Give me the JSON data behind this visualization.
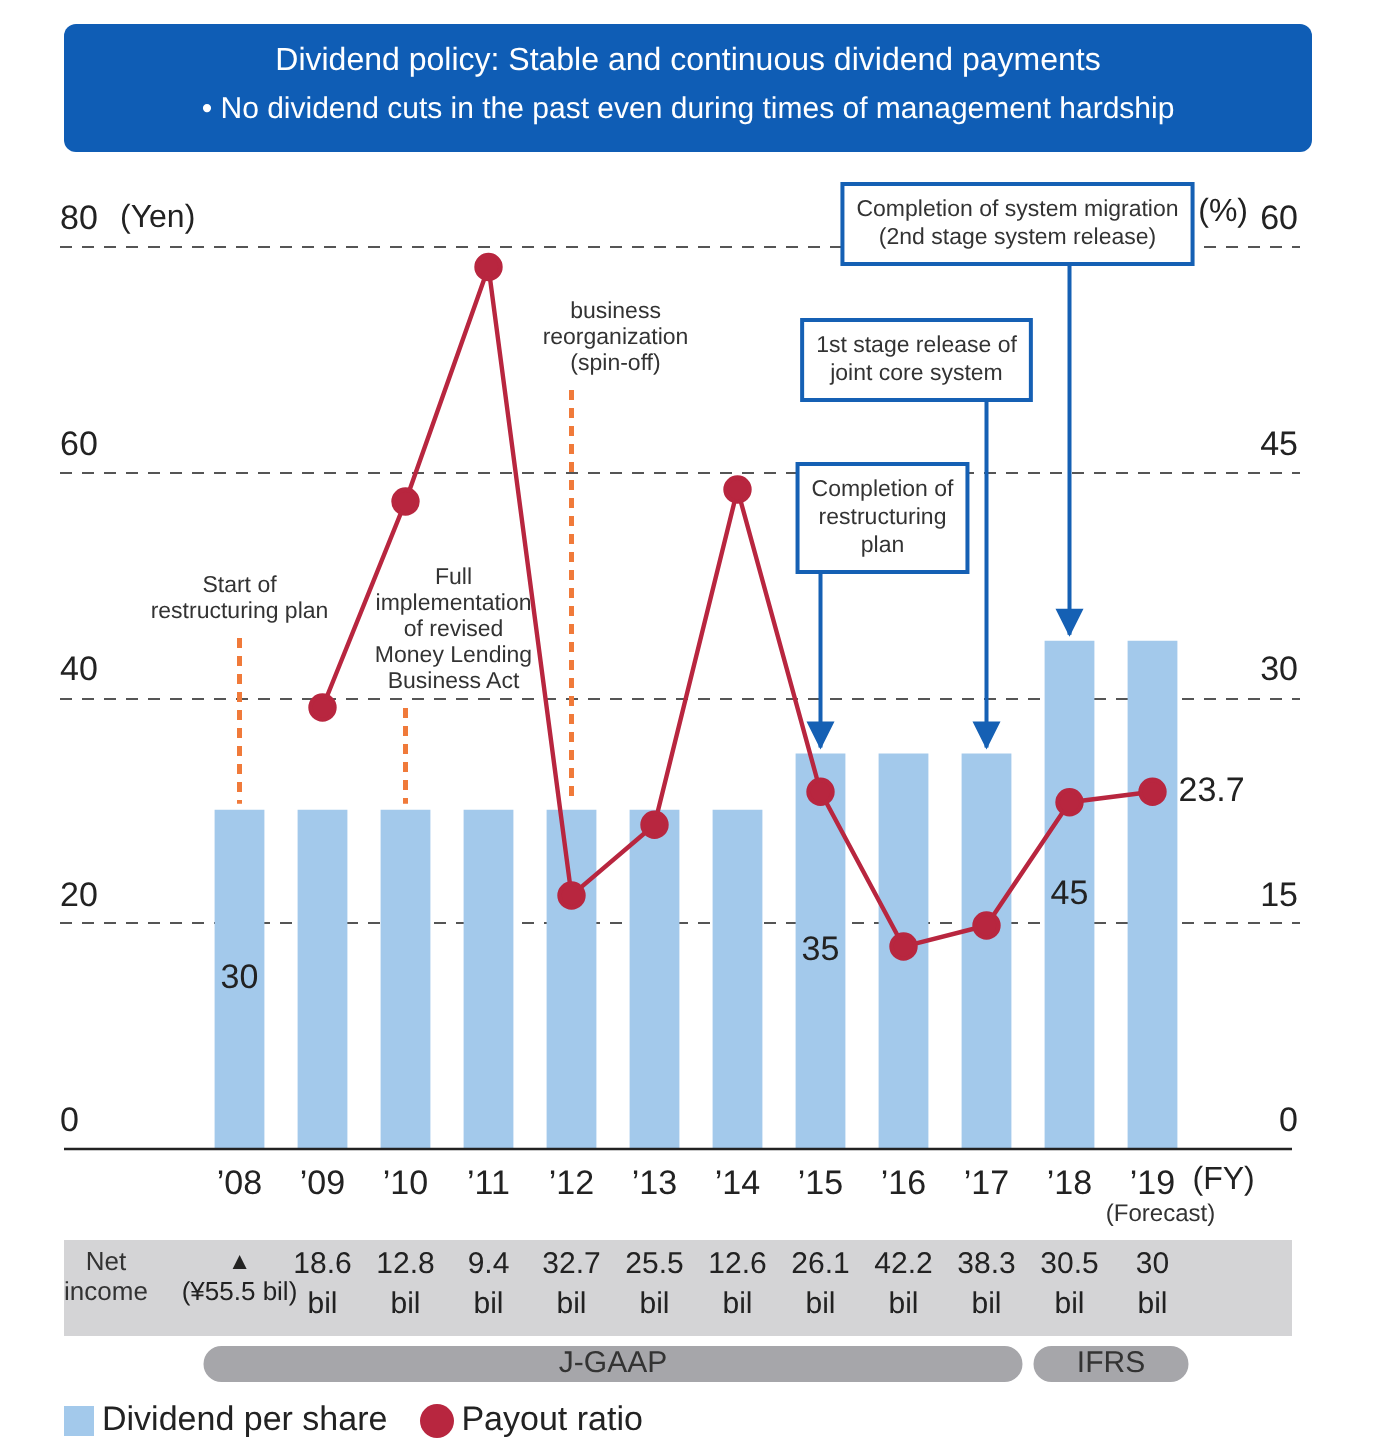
{
  "chart_data": {
    "type": "bar",
    "title": "Dividend policy: Stable and continuous dividend payments",
    "subtitle": "• No dividend cuts in the past even during times of management hardship",
    "categories": [
      "’08",
      "’09",
      "’10",
      "’11",
      "’12",
      "’13",
      "’14",
      "’15",
      "’16",
      "’17",
      "’18",
      "’19"
    ],
    "ylabel": "(Yen)",
    "y2label": "(%)",
    "xlabel": "(FY)",
    "series": [
      {
        "name": "Dividend per share",
        "color": "#a3c9eb",
        "values": [
          30,
          30,
          30,
          30,
          30,
          30,
          30,
          35,
          35,
          35,
          45,
          45
        ],
        "value_labels": [
          "30",
          null,
          null,
          null,
          null,
          null,
          null,
          "35",
          null,
          null,
          "45",
          null
        ]
      },
      {
        "name": "Payout ratio",
        "type": "line",
        "axis": "y2",
        "color": "#b8263f",
        "marker": "circle",
        "values": [
          null,
          29.3,
          43.0,
          58.6,
          16.8,
          21.5,
          43.8,
          23.7,
          13.4,
          14.8,
          23.0,
          23.7
        ],
        "value_labels": [
          null,
          null,
          null,
          null,
          null,
          null,
          null,
          null,
          null,
          null,
          null,
          "23.7"
        ]
      }
    ],
    "ylim": [
      0,
      80
    ],
    "yticks": [
      0,
      20,
      40,
      60,
      80
    ],
    "y2lim": [
      0,
      60
    ],
    "y2ticks": [
      0,
      15,
      30,
      45,
      60
    ],
    "grid": "y",
    "legend": "bottom left",
    "annotations": [
      {
        "text": "Start of restructuring plan",
        "x": "’08",
        "y": 30
      },
      {
        "text": "Full implementation of revised Money Lending Business Act",
        "x": "’10",
        "y": 30
      },
      {
        "text": "business reorganization (spin-off)",
        "x": "’12",
        "y": 30
      },
      {
        "text": "Completion of restructuring plan",
        "x": "’15",
        "y": 35
      },
      {
        "text": "1st stage release of joint core system",
        "x": "’17",
        "y": 35
      },
      {
        "text": "Completion of system migration (2nd stage system release)",
        "x": "’18",
        "y": 45
      },
      "(Forecast)",
      "Net income",
      "▲ (¥55.5 bil)",
      "18.6 bil",
      "12.8 bil",
      "9.4 bil",
      "32.7 bil",
      "25.5 bil",
      "12.6 bil",
      "26.1 bil",
      "42.2 bil",
      "38.3 bil",
      "30.5 bil",
      "30 bil",
      "J-GAAP",
      "IFRS"
    ]
  }
}
